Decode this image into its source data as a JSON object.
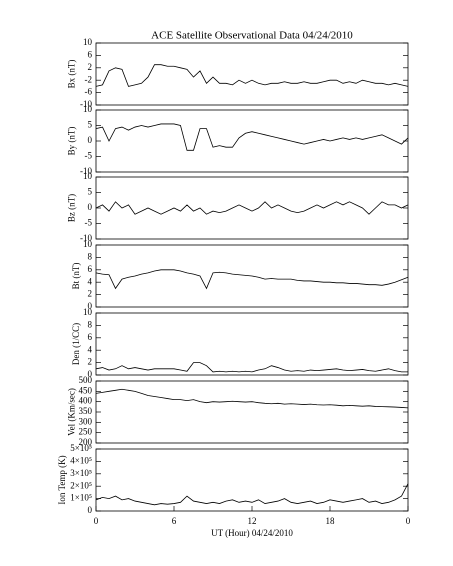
{
  "chart_data": [
    {
      "type": "line",
      "title": "ACE Satellite Observational Data   04/24/2010",
      "ylabel": "Bx (nT)",
      "xlim": [
        0,
        24
      ],
      "ylim": [
        -10,
        10
      ],
      "yticks": [
        -10,
        -6,
        -2,
        2,
        6,
        10
      ],
      "x": [
        0,
        0.5,
        1,
        1.5,
        2,
        2.5,
        3,
        3.5,
        4,
        4.5,
        5,
        5.5,
        6,
        6.5,
        7,
        7.5,
        8,
        8.5,
        9,
        9.5,
        10,
        10.5,
        11,
        11.5,
        12,
        12.5,
        13,
        13.5,
        14,
        14.5,
        15,
        15.5,
        16,
        16.5,
        17,
        17.5,
        18,
        18.5,
        19,
        19.5,
        20,
        20.5,
        21,
        21.5,
        22,
        22.5,
        23,
        23.5,
        24
      ],
      "series": [
        {
          "color": "#000000",
          "values": [
            -4,
            -3.5,
            1,
            2,
            1.5,
            -4,
            -3.5,
            -3,
            -1,
            3,
            3,
            2.5,
            2.5,
            2,
            1.5,
            -1,
            1,
            -3,
            -1,
            -3,
            -3,
            -3.5,
            -2,
            -3,
            -2,
            -3,
            -3.5,
            -3,
            -3,
            -2.5,
            -3,
            -3,
            -2.5,
            -3,
            -3,
            -2.5,
            -2,
            -2,
            -3,
            -2.5,
            -3,
            -2,
            -2.5,
            -3,
            -3,
            -3.5,
            -3,
            -3.5,
            -4
          ]
        }
      ]
    },
    {
      "type": "line",
      "ylabel": "By (nT)",
      "xlim": [
        0,
        24
      ],
      "ylim": [
        -10,
        10
      ],
      "yticks": [
        -10,
        -5,
        0,
        5,
        10
      ],
      "x": [
        0,
        0.5,
        1,
        1.5,
        2,
        2.5,
        3,
        3.5,
        4,
        4.5,
        5,
        5.5,
        6,
        6.5,
        7,
        7.5,
        8,
        8.5,
        9,
        9.5,
        10,
        10.5,
        11,
        11.5,
        12,
        12.5,
        13,
        13.5,
        14,
        14.5,
        15,
        15.5,
        16,
        16.5,
        17,
        17.5,
        18,
        18.5,
        19,
        19.5,
        20,
        20.5,
        21,
        21.5,
        22,
        22.5,
        23,
        23.5,
        24
      ],
      "series": [
        {
          "color": "#000000",
          "values": [
            4,
            4.5,
            0,
            4,
            4.5,
            3.5,
            4.5,
            5,
            4.5,
            5,
            5.5,
            5.5,
            5.5,
            5,
            -3,
            -3,
            4,
            4,
            -2,
            -1.5,
            -2,
            -2,
            1,
            2.5,
            3,
            2.5,
            2,
            1.5,
            1,
            0.5,
            0,
            -0.5,
            -1,
            -0.5,
            0,
            0.5,
            0,
            0.5,
            1,
            0.5,
            1,
            0.5,
            1,
            1.5,
            2,
            1,
            0,
            -1,
            1
          ]
        }
      ]
    },
    {
      "type": "line",
      "ylabel": "Bz (nT)",
      "xlim": [
        0,
        24
      ],
      "ylim": [
        -10,
        10
      ],
      "yticks": [
        -10,
        -5,
        0,
        5,
        10
      ],
      "x": [
        0,
        0.5,
        1,
        1.5,
        2,
        2.5,
        3,
        3.5,
        4,
        4.5,
        5,
        5.5,
        6,
        6.5,
        7,
        7.5,
        8,
        8.5,
        9,
        9.5,
        10,
        10.5,
        11,
        11.5,
        12,
        12.5,
        13,
        13.5,
        14,
        14.5,
        15,
        15.5,
        16,
        16.5,
        17,
        17.5,
        18,
        18.5,
        19,
        19.5,
        20,
        20.5,
        21,
        21.5,
        22,
        22.5,
        23,
        23.5,
        24
      ],
      "series": [
        {
          "color": "#000000",
          "values": [
            0,
            1,
            -1,
            2,
            0,
            1,
            -2,
            -1,
            0,
            -1,
            -2,
            -1,
            0,
            -1,
            1,
            -1,
            0,
            -2,
            -1,
            -1.5,
            -1,
            0,
            1,
            0,
            -1,
            0,
            2,
            0,
            1,
            0,
            -1,
            -1.5,
            -1,
            0,
            1,
            0,
            1,
            2,
            1,
            2,
            1,
            0,
            -2,
            0,
            2,
            1,
            1,
            0,
            1
          ]
        }
      ]
    },
    {
      "type": "line",
      "ylabel": "Bt (nT)",
      "xlim": [
        0,
        24
      ],
      "ylim": [
        0,
        10
      ],
      "yticks": [
        0,
        2,
        4,
        6,
        8,
        10
      ],
      "x": [
        0,
        0.5,
        1,
        1.5,
        2,
        2.5,
        3,
        3.5,
        4,
        4.5,
        5,
        5.5,
        6,
        6.5,
        7,
        7.5,
        8,
        8.5,
        9,
        9.5,
        10,
        10.5,
        11,
        11.5,
        12,
        12.5,
        13,
        13.5,
        14,
        14.5,
        15,
        15.5,
        16,
        16.5,
        17,
        17.5,
        18,
        18.5,
        19,
        19.5,
        20,
        20.5,
        21,
        21.5,
        22,
        22.5,
        23,
        23.5,
        24
      ],
      "series": [
        {
          "color": "#000000",
          "values": [
            5.5,
            5.3,
            5.2,
            3,
            4.5,
            4.8,
            5,
            5.3,
            5.5,
            5.8,
            6,
            6,
            6,
            5.8,
            5.5,
            5.3,
            5,
            3,
            5.5,
            5.6,
            5.5,
            5.3,
            5.2,
            5.1,
            5,
            4.8,
            4.5,
            4.6,
            4.5,
            4.5,
            4.5,
            4.3,
            4.2,
            4.2,
            4.1,
            4,
            4,
            3.9,
            3.9,
            3.8,
            3.8,
            3.7,
            3.6,
            3.6,
            3.5,
            3.7,
            4,
            4.4,
            4.8
          ]
        }
      ]
    },
    {
      "type": "line",
      "ylabel": "Den (1/CC)",
      "xlim": [
        0,
        24
      ],
      "ylim": [
        0,
        10
      ],
      "yticks": [
        0,
        2,
        4,
        6,
        8,
        10
      ],
      "x": [
        0,
        0.5,
        1,
        1.5,
        2,
        2.5,
        3,
        3.5,
        4,
        4.5,
        5,
        5.5,
        6,
        6.5,
        7,
        7.5,
        8,
        8.5,
        9,
        9.5,
        10,
        10.5,
        11,
        11.5,
        12,
        12.5,
        13,
        13.5,
        14,
        14.5,
        15,
        15.5,
        16,
        16.5,
        17,
        17.5,
        18,
        18.5,
        19,
        19.5,
        20,
        20.5,
        21,
        21.5,
        22,
        22.5,
        23,
        23.5,
        24
      ],
      "series": [
        {
          "color": "#000000",
          "values": [
            1,
            1.2,
            0.8,
            1,
            1.5,
            1,
            1.2,
            1,
            0.8,
            1,
            1,
            1,
            1,
            0.8,
            0.6,
            2,
            2,
            1.5,
            0.5,
            0.6,
            0.5,
            0.6,
            0.5,
            0.6,
            0.5,
            0.8,
            1,
            1.5,
            1.2,
            0.8,
            0.6,
            0.7,
            0.6,
            0.8,
            0.7,
            0.8,
            0.9,
            1,
            0.8,
            0.7,
            0.8,
            0.9,
            0.7,
            0.6,
            0.8,
            1,
            0.7,
            0.5,
            0.5
          ]
        }
      ]
    },
    {
      "type": "line",
      "ylabel": "Vel (Km/sec)",
      "xlim": [
        0,
        24
      ],
      "ylim": [
        200,
        500
      ],
      "yticks": [
        200,
        250,
        300,
        350,
        400,
        450,
        500
      ],
      "x": [
        0,
        0.5,
        1,
        1.5,
        2,
        2.5,
        3,
        3.5,
        4,
        4.5,
        5,
        5.5,
        6,
        6.5,
        7,
        7.5,
        8,
        8.5,
        9,
        9.5,
        10,
        10.5,
        11,
        11.5,
        12,
        12.5,
        13,
        13.5,
        14,
        14.5,
        15,
        15.5,
        16,
        16.5,
        17,
        17.5,
        18,
        18.5,
        19,
        19.5,
        20,
        20.5,
        21,
        21.5,
        22,
        22.5,
        23,
        23.5,
        24
      ],
      "series": [
        {
          "color": "#000000",
          "values": [
            440,
            445,
            450,
            455,
            460,
            455,
            450,
            440,
            430,
            425,
            420,
            415,
            410,
            410,
            405,
            410,
            400,
            395,
            400,
            398,
            400,
            402,
            400,
            398,
            400,
            395,
            392,
            390,
            392,
            388,
            390,
            388,
            386,
            388,
            385,
            384,
            385,
            383,
            380,
            382,
            380,
            378,
            380,
            377,
            376,
            375,
            374,
            372,
            370
          ]
        }
      ]
    },
    {
      "type": "line",
      "ylabel": "Ion Temp (K)",
      "xlabel": "UT (Hour)  04/24/2010",
      "xlim": [
        0,
        24
      ],
      "xticks": [
        0,
        6,
        12,
        18,
        {
          "value": 24,
          "label": "0"
        }
      ],
      "ylim": [
        0,
        500000
      ],
      "yticks": [
        0,
        {
          "value": 100000,
          "label": "1×10⁵"
        },
        {
          "value": 200000,
          "label": "2×10⁵"
        },
        {
          "value": 300000,
          "label": "3×10⁵"
        },
        {
          "value": 400000,
          "label": "4×10⁵"
        },
        {
          "value": 500000,
          "label": "5×10⁵"
        }
      ],
      "x": [
        0,
        0.5,
        1,
        1.5,
        2,
        2.5,
        3,
        3.5,
        4,
        4.5,
        5,
        5.5,
        6,
        6.5,
        7,
        7.5,
        8,
        8.5,
        9,
        9.5,
        10,
        10.5,
        11,
        11.5,
        12,
        12.5,
        13,
        13.5,
        14,
        14.5,
        15,
        15.5,
        16,
        16.5,
        17,
        17.5,
        18,
        18.5,
        19,
        19.5,
        20,
        20.5,
        21,
        21.5,
        22,
        22.5,
        23,
        23.5,
        24
      ],
      "series": [
        {
          "color": "#000000",
          "values": [
            90000,
            110000,
            100000,
            120000,
            90000,
            100000,
            80000,
            70000,
            60000,
            50000,
            60000,
            55000,
            60000,
            70000,
            120000,
            80000,
            70000,
            60000,
            70000,
            60000,
            80000,
            90000,
            70000,
            80000,
            70000,
            90000,
            60000,
            70000,
            80000,
            100000,
            70000,
            60000,
            70000,
            80000,
            60000,
            70000,
            90000,
            80000,
            70000,
            80000,
            90000,
            100000,
            70000,
            80000,
            60000,
            70000,
            90000,
            120000,
            220000
          ]
        }
      ]
    }
  ]
}
